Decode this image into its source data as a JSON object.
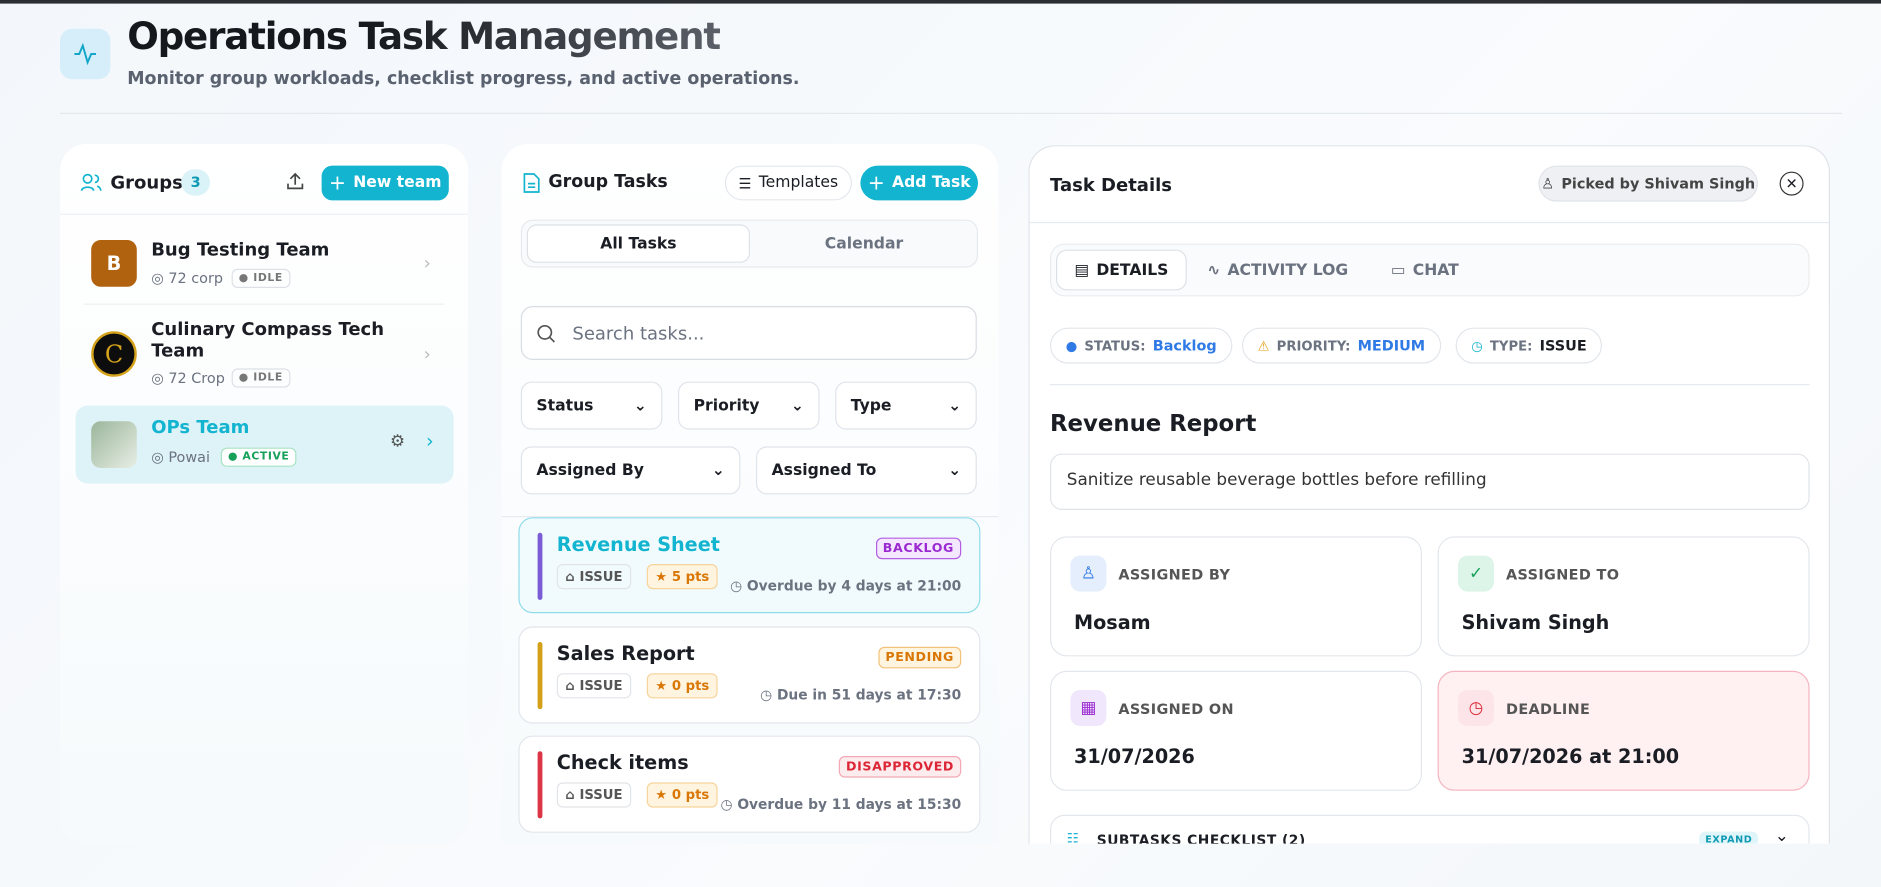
{
  "header": {
    "title": "Operations Task Management",
    "subtitle": "Monitor group workloads, checklist progress, and active operations."
  },
  "groups": {
    "title": "Groups",
    "count": 3,
    "new_button": "New team",
    "items": [
      {
        "initial": "B",
        "name": "Bug Testing Team",
        "location": "72 corp",
        "status": "IDLE"
      },
      {
        "name": "Culinary Compass Tech Team",
        "location": "72 Crop",
        "status": "IDLE"
      },
      {
        "name": "OPs Team",
        "location": "Powai",
        "status": "ACTIVE"
      }
    ]
  },
  "tasks": {
    "title": "Group Tasks",
    "templates_button": "Templates",
    "add_button": "Add Task",
    "tabs": [
      "All Tasks",
      "Calendar"
    ],
    "search_placeholder": "Search tasks...",
    "filters": [
      "Status",
      "Priority",
      "Type",
      "Assigned By",
      "Assigned To"
    ],
    "items": [
      {
        "title": "Revenue Sheet",
        "status": "BACKLOG",
        "type": "ISSUE",
        "points": "5 pts",
        "due": "Overdue by 4 days at 21:00"
      },
      {
        "title": "Sales Report",
        "status": "PENDING",
        "type": "ISSUE",
        "points": "0 pts",
        "due": "Due in 51 days at 17:30"
      },
      {
        "title": "Check items",
        "status": "DISAPPROVED",
        "type": "ISSUE",
        "points": "0 pts",
        "due": "Overdue by 11 days at 15:30"
      }
    ]
  },
  "details": {
    "title": "Task Details",
    "picked_by": "Picked by Shivam Singh",
    "tabs": [
      "DETAILS",
      "ACTIVITY LOG",
      "CHAT"
    ],
    "status_label": "STATUS:",
    "status": "Backlog",
    "priority_label": "PRIORITY:",
    "priority": "MEDIUM",
    "type_label": "TYPE:",
    "type": "ISSUE",
    "task_title": "Revenue Report",
    "description": "Sanitize reusable beverage bottles before refilling",
    "fields": [
      {
        "label": "ASSIGNED BY",
        "value": "Mosam"
      },
      {
        "label": "ASSIGNED TO",
        "value": "Shivam Singh"
      },
      {
        "label": "ASSIGNED ON",
        "value": "31/07/2026"
      },
      {
        "label": "DEADLINE",
        "value": "31/07/2026 at 21:00"
      }
    ],
    "subtasks": "SUBTASKS CHECKLIST (2)",
    "expand": "EXPAND"
  }
}
